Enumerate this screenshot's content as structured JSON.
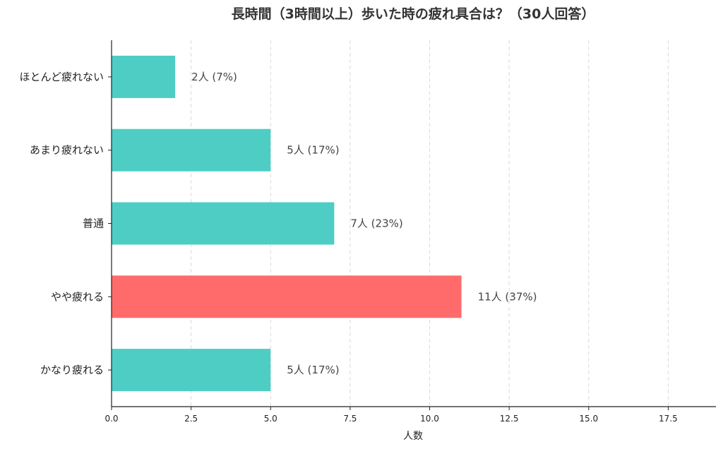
{
  "chart_data": {
    "type": "bar",
    "orientation": "horizontal",
    "title": "長時間（3時間以上）歩いた時の疲れ具合は？（30人回答）",
    "xlabel": "人数",
    "ylabel": "",
    "categories": [
      "ほとんど疲れない",
      "あまり疲れない",
      "普通",
      "やや疲れる",
      "かなり疲れる"
    ],
    "values": [
      2,
      5,
      7,
      11,
      5
    ],
    "data_labels": [
      "2人 (7%)",
      "5人 (17%)",
      "7人 (23%)",
      "11人 (37%)",
      "5人 (17%)"
    ],
    "xlim": [
      0,
      19
    ],
    "xticks": [
      "0.0",
      "2.5",
      "5.0",
      "7.5",
      "10.0",
      "12.5",
      "15.0",
      "17.5"
    ],
    "xtick_values": [
      0,
      2.5,
      5,
      7.5,
      10,
      12.5,
      15,
      17.5
    ],
    "grid": "vertical dashed",
    "colors": {
      "default_bar": "#4ecdc4",
      "highlight_bar": "#ff6b6b",
      "highlight_category": "やや疲れる"
    }
  }
}
